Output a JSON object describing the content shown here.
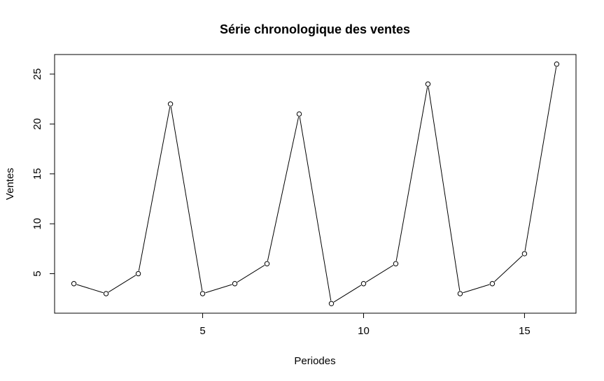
{
  "chart_data": {
    "type": "line",
    "title": "Série chronologique des ventes",
    "xlabel": "Periodes",
    "ylabel": "Ventes",
    "x": [
      1,
      2,
      3,
      4,
      5,
      6,
      7,
      8,
      9,
      10,
      11,
      12,
      13,
      14,
      15,
      16
    ],
    "series": [
      {
        "values": [
          4,
          3,
          5,
          22,
          3,
          4,
          6,
          21,
          2,
          4,
          6,
          24,
          3,
          4,
          7,
          26
        ]
      }
    ],
    "xlim": [
      0.4,
      16.6
    ],
    "ylim": [
      1.04,
      26.96
    ],
    "xticks": [
      5,
      10,
      15
    ],
    "yticks": [
      5,
      10,
      15,
      20,
      25
    ],
    "marker": "open-circle",
    "line_color": "#000000",
    "grid": false,
    "legend": false
  }
}
